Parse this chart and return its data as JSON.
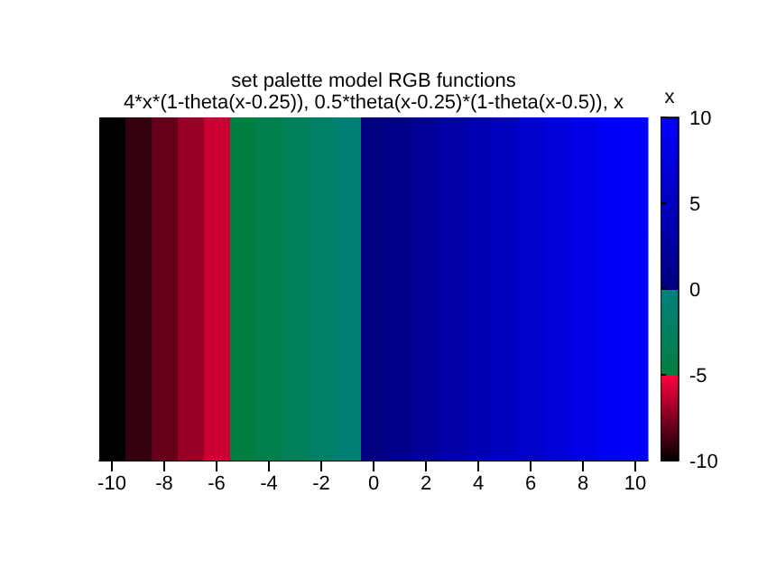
{
  "chart_data": {
    "type": "heatmap",
    "title": "set palette model RGB functions",
    "subtitle": "4*x*(1-theta(x-0.25)), 0.5*theta(x-0.25)*(1-theta(x-0.5)), x",
    "clabel": "x",
    "categories": [
      "-10",
      null,
      "-8",
      null,
      "-6",
      null,
      "-4",
      null,
      "-2",
      null,
      "0",
      null,
      "2",
      null,
      "4",
      null,
      "6",
      null,
      "8",
      null,
      "10"
    ],
    "y_categories": [
      null
    ],
    "cells": [
      [
        -10,
        -9,
        -8,
        -7,
        -6,
        -5,
        -4,
        -3,
        -2,
        -1,
        0,
        1,
        2,
        3,
        4,
        5,
        6,
        7,
        8,
        9,
        10
      ]
    ],
    "clim": [
      -10,
      10
    ],
    "cticks": [
      -10,
      -5,
      0,
      5,
      10
    ],
    "tick_labels": "x"
  }
}
